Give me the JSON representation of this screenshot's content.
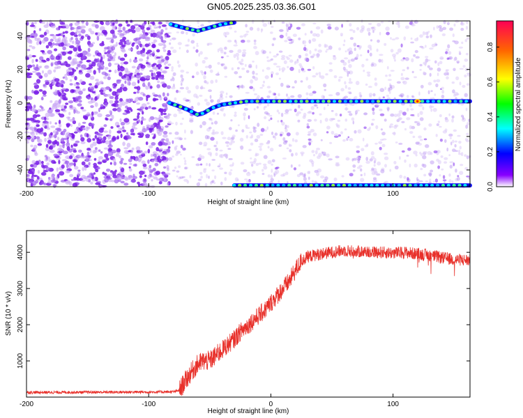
{
  "title": "GN05.2025.235.03.36.G01",
  "chart_data": [
    {
      "type": "heatmap",
      "name": "spectrogram",
      "xlabel": "Height of straight line (km)",
      "ylabel": "Frequency (Hz)",
      "xlim": [
        -200,
        163
      ],
      "ylim": [
        -50,
        49
      ],
      "xticks": [
        -200,
        -100,
        0,
        100
      ],
      "yticks": [
        -40,
        -20,
        0,
        20,
        40
      ],
      "colorbar": {
        "label": "Normalized spectral amplitude",
        "range": [
          0,
          0.95
        ],
        "ticks": [
          0.0,
          0.2,
          0.4,
          0.6,
          0.8
        ],
        "tick_labels": [
          "0.0",
          "0.2",
          "0.4",
          "0.6",
          "0.8"
        ]
      },
      "features": {
        "noise_dense_region_x": [
          -200,
          -83
        ],
        "carrier_track": [
          [
            -83,
            0
          ],
          [
            -75,
            -2
          ],
          [
            -68,
            -4
          ],
          [
            -60,
            -7
          ],
          [
            -55,
            -6
          ],
          [
            -48,
            -3
          ],
          [
            -40,
            -1
          ],
          [
            -30,
            0
          ],
          [
            -20,
            1
          ],
          [
            0,
            1
          ],
          [
            50,
            1
          ],
          [
            100,
            1
          ],
          [
            163,
            1
          ]
        ],
        "upper_alias_track": [
          [
            -82,
            47
          ],
          [
            -72,
            45
          ],
          [
            -60,
            43
          ],
          [
            -50,
            45
          ],
          [
            -40,
            47
          ],
          [
            -30,
            48
          ]
        ],
        "lower_edge_track_x": [
          -30,
          163
        ],
        "peak_point": [
          120,
          1
        ]
      }
    },
    {
      "type": "line",
      "name": "snr",
      "xlabel": "Height of straight line (km)",
      "ylabel": "SNR (10 * v/v)",
      "xlim": [
        -200,
        163
      ],
      "ylim": [
        0,
        4600
      ],
      "xticks": [
        -200,
        -100,
        0,
        100
      ],
      "yticks": [
        1000,
        2000,
        3000,
        4000
      ],
      "color": "#e8302a",
      "series": [
        {
          "name": "SNR",
          "x": [
            -200,
            -150,
            -100,
            -80,
            -75,
            -70,
            -65,
            -60,
            -55,
            -50,
            -45,
            -40,
            -35,
            -30,
            -25,
            -20,
            -15,
            -10,
            -5,
            0,
            5,
            10,
            15,
            20,
            25,
            30,
            40,
            50,
            60,
            70,
            80,
            90,
            100,
            110,
            120,
            130,
            140,
            150,
            163
          ],
          "y": [
            130,
            135,
            140,
            145,
            180,
            450,
            700,
            900,
            1000,
            1000,
            1150,
            1300,
            1450,
            1600,
            1800,
            1950,
            2100,
            2250,
            2400,
            2600,
            2800,
            3000,
            3200,
            3500,
            3750,
            3880,
            3950,
            4000,
            4050,
            4020,
            4020,
            4000,
            3980,
            4000,
            3950,
            3920,
            3850,
            3800,
            3780
          ]
        }
      ]
    }
  ]
}
